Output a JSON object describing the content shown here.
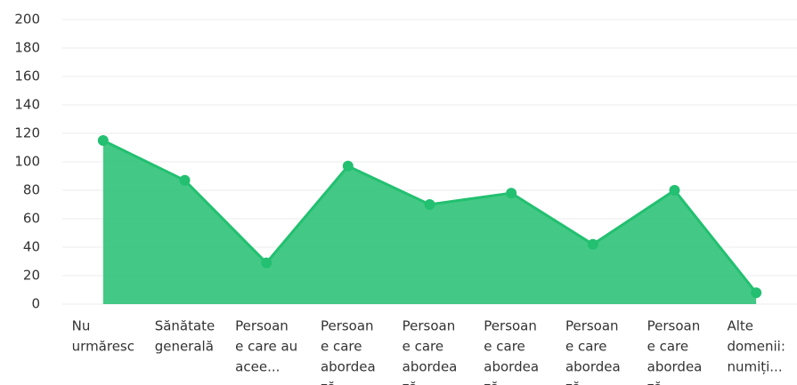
{
  "chart_data": {
    "type": "area",
    "categories": [
      [
        "Nu",
        "urmăresc"
      ],
      [
        "Sănătate",
        "generală"
      ],
      [
        "Persoan",
        "e care au",
        "acee..."
      ],
      [
        "Persoan",
        "e care",
        "abordea",
        "ză..."
      ],
      [
        "Persoan",
        "e care",
        "abordea",
        "ză..."
      ],
      [
        "Persoan",
        "e care",
        "abordea",
        "ză..."
      ],
      [
        "Persoan",
        "e care",
        "abordea",
        "ză..."
      ],
      [
        "Persoan",
        "e care",
        "abordea",
        "ză..."
      ],
      [
        "Alte",
        "domenii:",
        "numiți..."
      ]
    ],
    "values": [
      115,
      87,
      29,
      97,
      70,
      78,
      42,
      80,
      8
    ],
    "color": "#22c070",
    "ylim": [
      0,
      200
    ],
    "yticks": [
      0,
      20,
      40,
      60,
      80,
      100,
      120,
      140,
      160,
      180,
      200
    ],
    "grid": true
  }
}
